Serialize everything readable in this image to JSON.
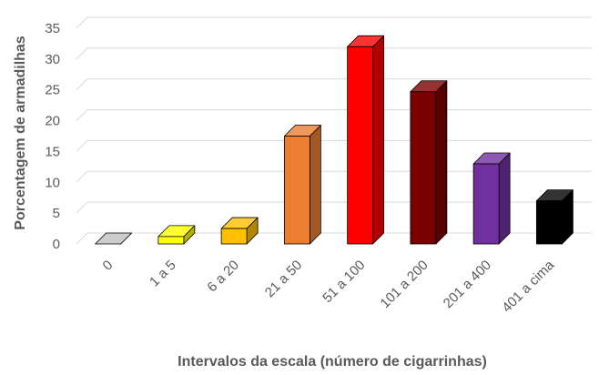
{
  "chart_data": {
    "type": "bar",
    "title": "",
    "xlabel": "Intervalos da escala  (número de cigarrinhas)",
    "ylabel": "Porcentagem de armadilhas",
    "ylim": [
      0,
      35
    ],
    "yticks": [
      0,
      5,
      10,
      15,
      20,
      25,
      30,
      35
    ],
    "grid": true,
    "legend": "none",
    "categories": [
      "0",
      "1 a 5",
      "6 a 20",
      "21 a 50",
      "51 a 100",
      "101 a 200",
      "201 a 400",
      "401 a cima"
    ],
    "values": [
      0,
      1.2,
      2.5,
      17.5,
      32,
      24.7,
      13,
      7
    ],
    "colors": [
      "#bfbfbf",
      "#ffff00",
      "#ffc000",
      "#ed7d31",
      "#ff0000",
      "#7b0000",
      "#7030a0",
      "#000000"
    ]
  }
}
